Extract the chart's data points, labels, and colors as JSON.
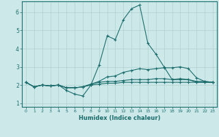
{
  "xlabel": "Humidex (Indice chaleur)",
  "background_color": "#cce8e8",
  "grid_color": "#b0d0d0",
  "line_color": "#1a6b6b",
  "x": [
    0,
    1,
    2,
    3,
    4,
    5,
    6,
    7,
    8,
    9,
    10,
    11,
    12,
    13,
    14,
    15,
    16,
    17,
    18,
    19,
    20,
    21,
    22,
    23
  ],
  "y_main": [
    2.15,
    1.9,
    2.0,
    1.95,
    2.0,
    1.7,
    1.5,
    1.4,
    2.0,
    3.1,
    4.7,
    4.5,
    5.6,
    6.2,
    6.4,
    4.3,
    3.7,
    3.0,
    2.3,
    2.35,
    2.3,
    2.15,
    2.15,
    2.15
  ],
  "y_upper": [
    2.15,
    1.9,
    2.0,
    1.95,
    2.0,
    1.85,
    1.85,
    1.9,
    2.05,
    2.2,
    2.45,
    2.5,
    2.7,
    2.8,
    2.9,
    2.85,
    2.9,
    2.95,
    2.95,
    3.0,
    2.9,
    2.4,
    2.2,
    2.15
  ],
  "y_lower": [
    2.15,
    1.9,
    2.0,
    1.95,
    2.0,
    1.85,
    1.85,
    1.9,
    2.05,
    2.15,
    2.2,
    2.2,
    2.25,
    2.3,
    2.3,
    2.3,
    2.35,
    2.35,
    2.3,
    2.3,
    2.3,
    2.2,
    2.2,
    2.15
  ],
  "y_flat": [
    2.15,
    1.9,
    2.0,
    1.95,
    2.0,
    1.85,
    1.85,
    1.9,
    2.0,
    2.05,
    2.1,
    2.1,
    2.15,
    2.15,
    2.15,
    2.15,
    2.15,
    2.15,
    2.15,
    2.15,
    2.15,
    2.15,
    2.15,
    2.15
  ],
  "ylim": [
    0.8,
    6.6
  ],
  "xlim": [
    -0.5,
    23.5
  ],
  "yticks": [
    1,
    2,
    3,
    4,
    5,
    6
  ],
  "xticks": [
    0,
    1,
    2,
    3,
    4,
    5,
    6,
    7,
    8,
    9,
    10,
    11,
    12,
    13,
    14,
    15,
    16,
    17,
    18,
    19,
    20,
    21,
    22,
    23
  ],
  "markersize": 3,
  "linewidth": 0.8
}
